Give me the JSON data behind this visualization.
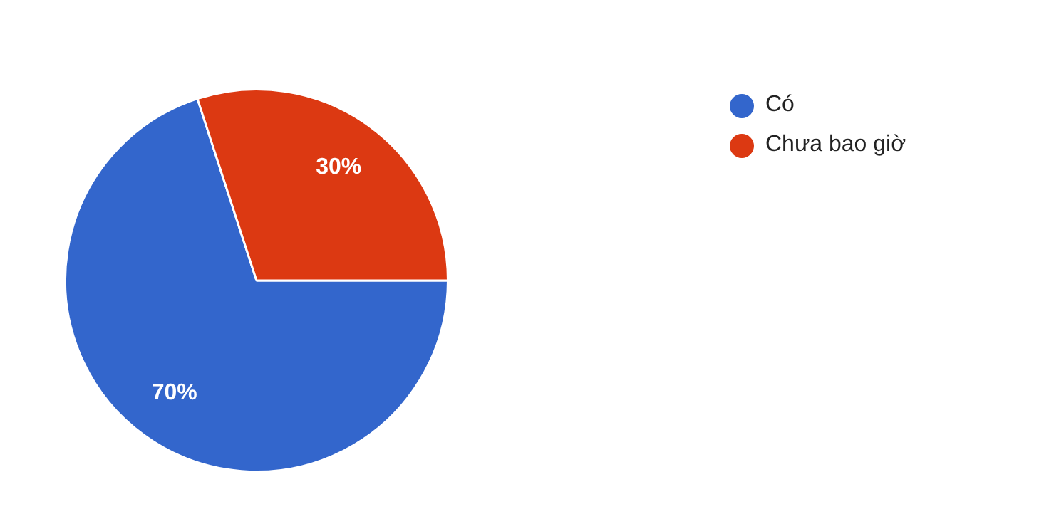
{
  "chart_data": {
    "type": "pie",
    "categories": [
      "Có",
      "Chưa bao giờ"
    ],
    "values": [
      70,
      30
    ],
    "colors": [
      "#3366cc",
      "#dc3912"
    ],
    "value_labels": [
      "70%",
      "30%"
    ],
    "legend": "top right"
  }
}
